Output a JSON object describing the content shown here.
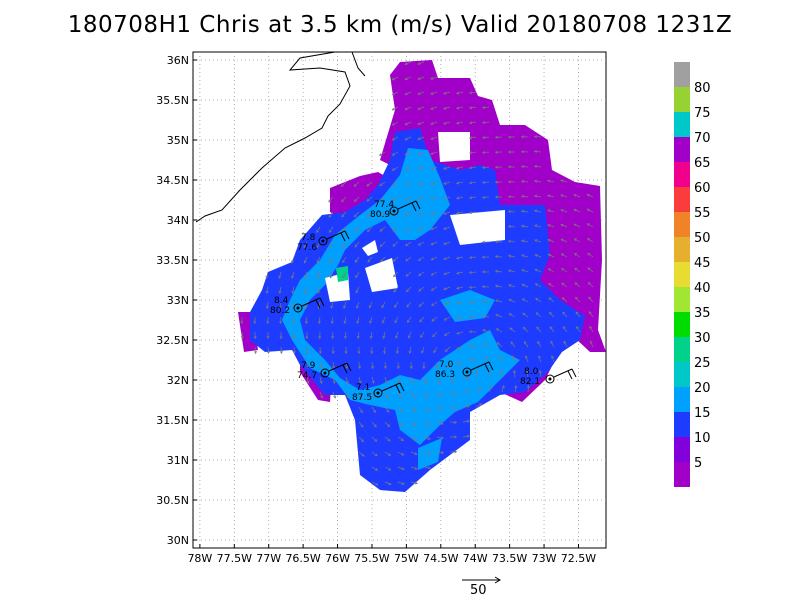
{
  "title": "180708H1 Chris at 3.5 km (m/s) Valid 20180708 1231Z",
  "map": {
    "lat_ticks": [
      "36N",
      "35.5N",
      "35N",
      "34.5N",
      "34N",
      "33.5N",
      "33N",
      "32.5N",
      "32N",
      "31.5N",
      "31N",
      "30.5N",
      "30N"
    ],
    "lon_ticks": [
      "78W",
      "77.5W",
      "77W",
      "76.5W",
      "76W",
      "75.5W",
      "75W",
      "74.5W",
      "74W",
      "73.5W",
      "73W",
      "72.5W"
    ],
    "lon_range": [
      -78.1,
      -72.1
    ],
    "lat_range": [
      29.9,
      36.1
    ]
  },
  "colorbar": {
    "labels": [
      "80",
      "75",
      "70",
      "65",
      "60",
      "55",
      "50",
      "45",
      "40",
      "35",
      "30",
      "25",
      "20",
      "15",
      "10",
      "5"
    ],
    "colors": {
      "above80": "#a0a0a0",
      "75": "#96d232",
      "70": "#00c8c8",
      "65": "#a000c8",
      "60": "#f0008c",
      "55": "#fa3c3c",
      "50": "#f08228",
      "45": "#e6af2d",
      "40": "#e6dc32",
      "35": "#a0e632",
      "30": "#00dc00",
      "25": "#00d28c",
      "20": "#00c8c8",
      "15": "#00a0ff",
      "10": "#1e3cff",
      "5": "#8200dc",
      "0": "#a000c8"
    }
  },
  "stations": [
    {
      "top": "77.4",
      "bottom": "80.9"
    },
    {
      "top": "7.8",
      "bottom": "77.6"
    },
    {
      "top": "8.4",
      "bottom": "80.2"
    },
    {
      "top": "7.9",
      "bottom": "74.7"
    },
    {
      "top": "7.1",
      "bottom": "87.5"
    },
    {
      "top": "7.0",
      "bottom": "86.3"
    },
    {
      "top": "8.0",
      "bottom": "82.1"
    }
  ],
  "reference_vector": {
    "label": "50"
  }
}
